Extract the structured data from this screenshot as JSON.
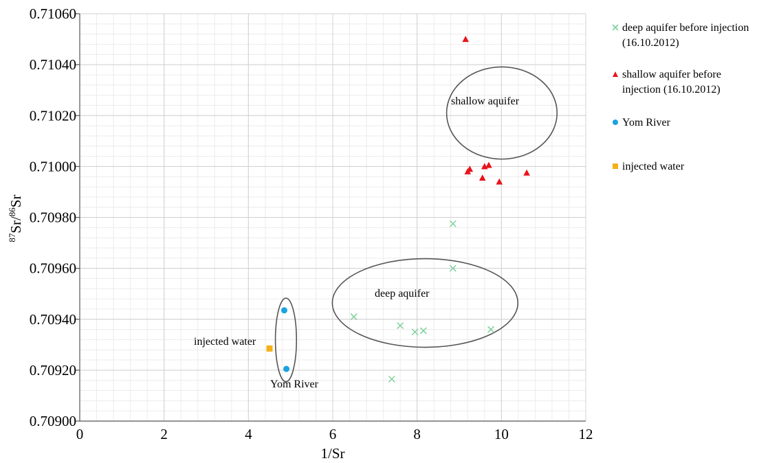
{
  "chart_data": {
    "type": "scatter",
    "xlabel": "1/Sr",
    "ylabel_prefix_sup": "87",
    "ylabel_mid": "Sr/",
    "ylabel_sup2": "86",
    "ylabel_end": "Sr",
    "xlim": [
      0,
      12
    ],
    "ylim": [
      0.709,
      0.7106
    ],
    "xticks": [
      0,
      2,
      4,
      6,
      8,
      10,
      12
    ],
    "xtick_labels": [
      "0",
      "2",
      "4",
      "6",
      "8",
      "10",
      "12"
    ],
    "yticks": [
      0.709,
      0.7092,
      0.7094,
      0.7096,
      0.7098,
      0.71,
      0.7102,
      0.7104,
      0.7106
    ],
    "ytick_labels": [
      "0.70900",
      "0.70920",
      "0.70940",
      "0.70960",
      "0.70980",
      "0.71000",
      "0.71020",
      "0.71040",
      "0.71060"
    ],
    "grid": true,
    "legend_position": "right",
    "series": [
      {
        "name": "deep aquifer before injection (16.10.2012)",
        "marker": "x",
        "color": "#7fd19c",
        "points": [
          [
            8.85,
            0.709775
          ],
          [
            8.85,
            0.7096
          ],
          [
            6.5,
            0.70941
          ],
          [
            7.6,
            0.709375
          ],
          [
            7.95,
            0.70935
          ],
          [
            8.15,
            0.709355
          ],
          [
            9.75,
            0.70936
          ],
          [
            7.4,
            0.709165
          ]
        ]
      },
      {
        "name": "shallow aquifer before injection (16.10.2012)",
        "marker": "triangle",
        "color": "#e8141b",
        "points": [
          [
            9.15,
            0.7105
          ],
          [
            9.2,
            0.70998
          ],
          [
            9.25,
            0.70999
          ],
          [
            9.6,
            0.71
          ],
          [
            9.7,
            0.710005
          ],
          [
            9.55,
            0.709955
          ],
          [
            9.95,
            0.70994
          ],
          [
            10.6,
            0.709975
          ]
        ]
      },
      {
        "name": "Yom River",
        "marker": "circle",
        "color": "#1aa3e0",
        "points": [
          [
            4.85,
            0.709435
          ],
          [
            4.9,
            0.709205
          ]
        ]
      },
      {
        "name": "injected water",
        "marker": "square",
        "color": "#f5b01a",
        "points": [
          [
            4.5,
            0.709285
          ]
        ]
      }
    ],
    "annotations": [
      "shallow aquifer",
      "deep aquifer",
      "injected water",
      "Yom River"
    ]
  },
  "legend_lines": [
    [
      "deep aquifer before injection",
      "(16.10.2012)"
    ],
    [
      "shallow aquifer before",
      "injection (16.10.2012)"
    ],
    [
      "Yom River"
    ],
    [
      "injected water"
    ]
  ]
}
